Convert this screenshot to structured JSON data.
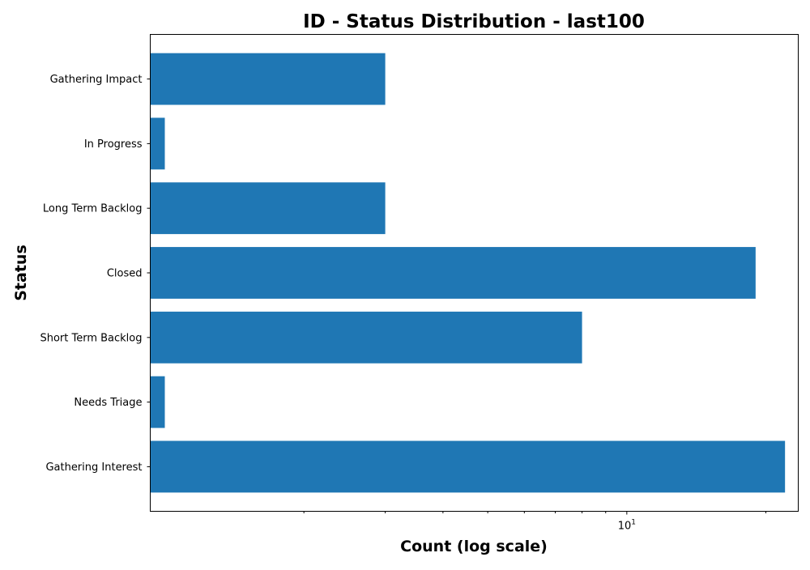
{
  "chart_data": {
    "type": "bar",
    "orientation": "horizontal",
    "title": "ID - Status Distribution - last100",
    "xlabel": "Count (log scale)",
    "ylabel": "Status",
    "x_scale": "log",
    "xlim": [
      0.93,
      23.5
    ],
    "x_major_ticks": [
      {
        "value": 10,
        "base": "10",
        "exp": "1"
      }
    ],
    "x_minor_ticks": [
      2,
      3,
      4,
      5,
      6,
      7,
      8,
      9,
      20
    ],
    "categories": [
      "Gathering Interest",
      "Needs Triage",
      "Short Term Backlog",
      "Closed",
      "Long Term Backlog",
      "In Progress",
      "Gathering Impact"
    ],
    "values": [
      22,
      1,
      8,
      19,
      3,
      1,
      3
    ],
    "bar_color": "#1f77b4",
    "grid": false,
    "legend": "none"
  }
}
